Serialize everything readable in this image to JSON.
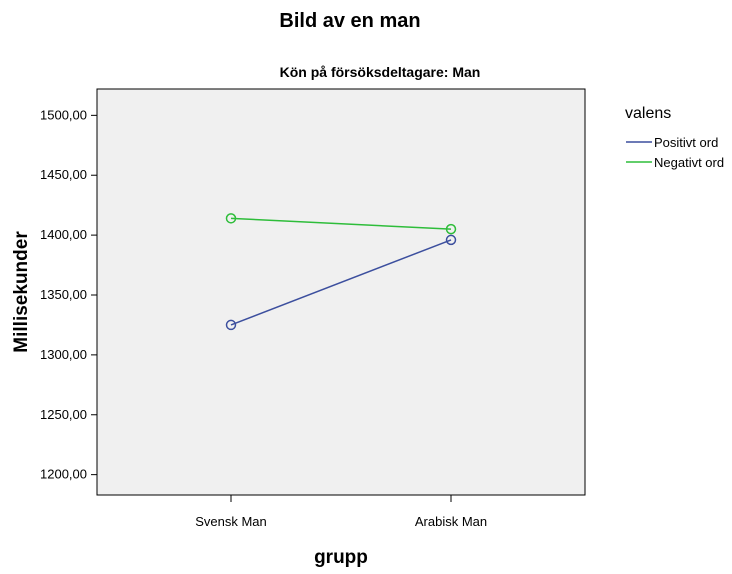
{
  "chart_data": {
    "type": "line",
    "title": "Bild av en man",
    "subtitle": "Kön på försöksdeltagare: Man",
    "xlabel": "grupp",
    "ylabel": "Millisekunder",
    "categories": [
      "Svensk Man",
      "Arabisk Man"
    ],
    "ylim": [
      1183,
      1522
    ],
    "yticks": [
      1200,
      1250,
      1300,
      1350,
      1400,
      1450,
      1500
    ],
    "ytick_labels": [
      "1200,00",
      "1250,00",
      "1300,00",
      "1350,00",
      "1400,00",
      "1450,00",
      "1500,00"
    ],
    "grid": false,
    "legend": {
      "title": "valens",
      "placement": "right"
    },
    "series": [
      {
        "name": "Positivt ord",
        "color": "#3c4f9e",
        "values": [
          1325,
          1396
        ]
      },
      {
        "name": "Negativt ord",
        "color": "#2ebd3a",
        "values": [
          1414,
          1405
        ]
      }
    ]
  },
  "colors": {
    "plot_background": "#f0f0f0",
    "axis": "#000000"
  }
}
